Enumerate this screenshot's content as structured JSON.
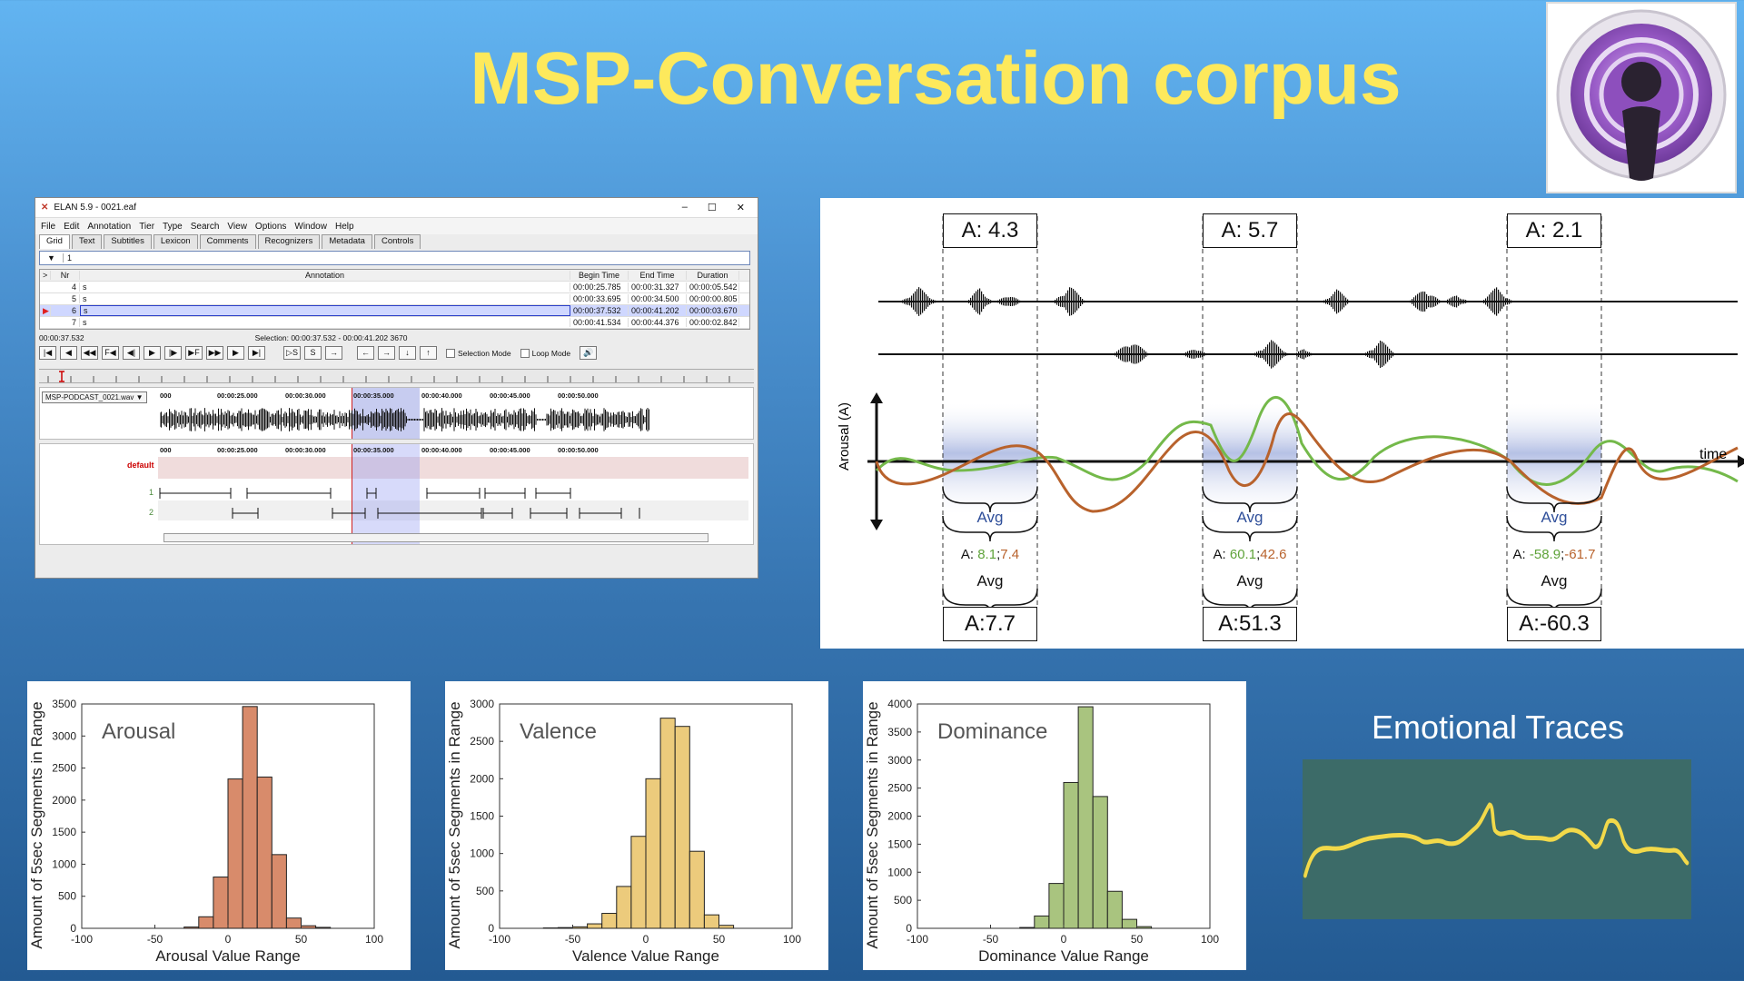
{
  "title": "MSP-Conversation corpus",
  "elan": {
    "window_title": "ELAN 5.9 - 0021.eaf",
    "menu": [
      "File",
      "Edit",
      "Annotation",
      "Tier",
      "Type",
      "Search",
      "View",
      "Options",
      "Window",
      "Help"
    ],
    "tabs": [
      "Grid",
      "Text",
      "Subtitles",
      "Lexicon",
      "Comments",
      "Recognizers",
      "Metadata",
      "Controls"
    ],
    "tier_select": "1",
    "columns": [
      ">",
      "Nr",
      "Annotation",
      "Begin Time",
      "End Time",
      "Duration"
    ],
    "rows": [
      {
        "nr": "4",
        "ann": "s",
        "begin": "00:00:25.785",
        "end": "00:00:31.327",
        "dur": "00:00:05.542"
      },
      {
        "nr": "5",
        "ann": "s",
        "begin": "00:00:33.695",
        "end": "00:00:34.500",
        "dur": "00:00:00.805"
      },
      {
        "nr": "6",
        "ann": "s",
        "begin": "00:00:37.532",
        "end": "00:00:41.202",
        "dur": "00:00:03.670"
      },
      {
        "nr": "7",
        "ann": "s",
        "begin": "00:00:41.534",
        "end": "00:00:44.376",
        "dur": "00:00:02.842"
      }
    ],
    "current_time": "00:00:37.532",
    "selection": "Selection: 00:00:37.532 - 00:00:41.202  3670",
    "selection_mode": "Selection Mode",
    "loop_mode": "Loop Mode",
    "wav_file": "MSP-PODCAST_0021.wav",
    "time_labels": [
      "000",
      "00:00:25.000",
      "00:00:30.000",
      "00:00:35.000",
      "00:00:40.000",
      "00:00:45.000",
      "00:00:50.000"
    ],
    "tier_default": "default",
    "tier1": "1",
    "tier2": "2"
  },
  "diagram": {
    "top_boxes": [
      "A: 4.3",
      "A: 5.7",
      "A: 2.1"
    ],
    "avg_label": "Avg",
    "pairs": [
      {
        "prefix": "A: ",
        "green": "8.1",
        "sep": ";",
        "orange": "7.4"
      },
      {
        "prefix": "A: ",
        "green": "60.1",
        "sep": ";",
        "orange": "42.6"
      },
      {
        "prefix": "A: ",
        "green": "-58.9",
        "sep": ";",
        "orange": "-61.7"
      }
    ],
    "bottom_boxes": [
      "A:7.7",
      "A:51.3",
      "A:-60.3"
    ],
    "y_label": "Arousal (A)",
    "x_label": "time",
    "colors": {
      "green": "#74b94a",
      "orange": "#b8622c"
    }
  },
  "histograms": [
    {
      "title": "Arousal",
      "xlabel": "Arousal Value Range",
      "ylabel": "Amount of 5sec Segments in Range",
      "yticks": [
        "0",
        "500",
        "1000",
        "1500",
        "2000",
        "2500",
        "3000",
        "3500"
      ],
      "xticks": [
        "-100",
        "-50",
        "0",
        "50",
        "100"
      ],
      "color": "#d88b6b"
    },
    {
      "title": "Valence",
      "xlabel": "Valence Value Range",
      "ylabel": "Amount of 5sec Segments in Range",
      "yticks": [
        "0",
        "500",
        "1000",
        "1500",
        "2000",
        "2500",
        "3000"
      ],
      "xticks": [
        "-100",
        "-50",
        "0",
        "50",
        "100"
      ],
      "color": "#eccb7c"
    },
    {
      "title": "Dominance",
      "xlabel": "Dominance Value Range",
      "ylabel": "Amount of 5sec Segments in Range",
      "yticks": [
        "0",
        "500",
        "1000",
        "1500",
        "2000",
        "2500",
        "3000",
        "3500",
        "4000"
      ],
      "xticks": [
        "-100",
        "-50",
        "0",
        "50",
        "100"
      ],
      "color": "#a9c47f"
    }
  ],
  "chart_data": [
    {
      "type": "bar",
      "title": "Arousal",
      "xlabel": "Arousal Value Range",
      "ylabel": "Amount of 5sec Segments in Range",
      "ylim": [
        0,
        3500
      ],
      "xlim": [
        -100,
        100
      ],
      "bins": [
        -30,
        -20,
        -10,
        0,
        10,
        20,
        30,
        40,
        50,
        60
      ],
      "values": [
        20,
        180,
        800,
        2330,
        3460,
        2360,
        1150,
        160,
        40,
        15
      ]
    },
    {
      "type": "bar",
      "title": "Valence",
      "xlabel": "Valence Value Range",
      "ylabel": "Amount of 5sec Segments in Range",
      "ylim": [
        0,
        3000
      ],
      "xlim": [
        -100,
        100
      ],
      "bins": [
        -70,
        -60,
        -50,
        -40,
        -30,
        -20,
        -10,
        0,
        10,
        20,
        30,
        40,
        50
      ],
      "values": [
        5,
        10,
        20,
        60,
        200,
        560,
        1230,
        2000,
        2810,
        2700,
        1030,
        180,
        40
      ]
    },
    {
      "type": "bar",
      "title": "Dominance",
      "xlabel": "Dominance Value Range",
      "ylabel": "Amount of 5sec Segments in Range",
      "ylim": [
        0,
        4000
      ],
      "xlim": [
        -100,
        100
      ],
      "bins": [
        -30,
        -20,
        -10,
        0,
        10,
        20,
        30,
        40,
        50
      ],
      "values": [
        15,
        220,
        800,
        2600,
        3950,
        2350,
        660,
        160,
        30
      ]
    }
  ],
  "traces": {
    "title": "Emotional Traces",
    "color": "#f2d94a"
  }
}
